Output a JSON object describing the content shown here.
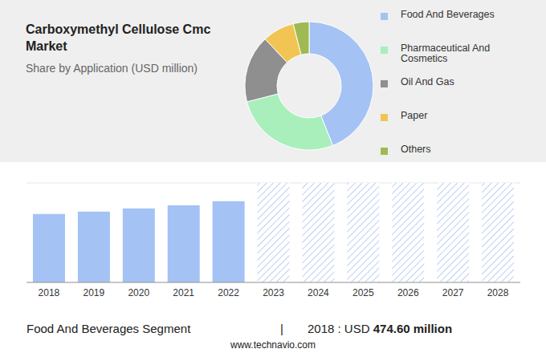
{
  "chart_data": [
    {
      "type": "pie",
      "title": "Carboxymethyl Cellulose Cmc Market",
      "subtitle": "Share by Application (USD million)",
      "categories": [
        "Food And Beverages",
        "Pharmaceutical And Cosmetics",
        "Oil And Gas",
        "Paper",
        "Others"
      ],
      "values": [
        44,
        27,
        17,
        8,
        4
      ],
      "colors": [
        "#a4c2f4",
        "#a8efbb",
        "#8f8f8f",
        "#f1c453",
        "#9fba52"
      ],
      "legend": "right"
    },
    {
      "type": "bar",
      "categories": [
        "2018",
        "2019",
        "2020",
        "2021",
        "2022",
        "2023",
        "2024",
        "2025",
        "2026",
        "2027",
        "2028"
      ],
      "values": [
        474.6,
        491,
        513,
        535,
        563,
        null,
        null,
        null,
        null,
        null,
        null
      ],
      "color": "#a4c2f4",
      "ylim": [
        0,
        690
      ],
      "yticks": [
        0,
        690
      ],
      "grid": true,
      "tick_labels": "x",
      "annotations": [
        "Food And Beverages Segment",
        "|",
        "2018 : USD",
        "474.60 million",
        "www.technavio.com"
      ]
    }
  ]
}
